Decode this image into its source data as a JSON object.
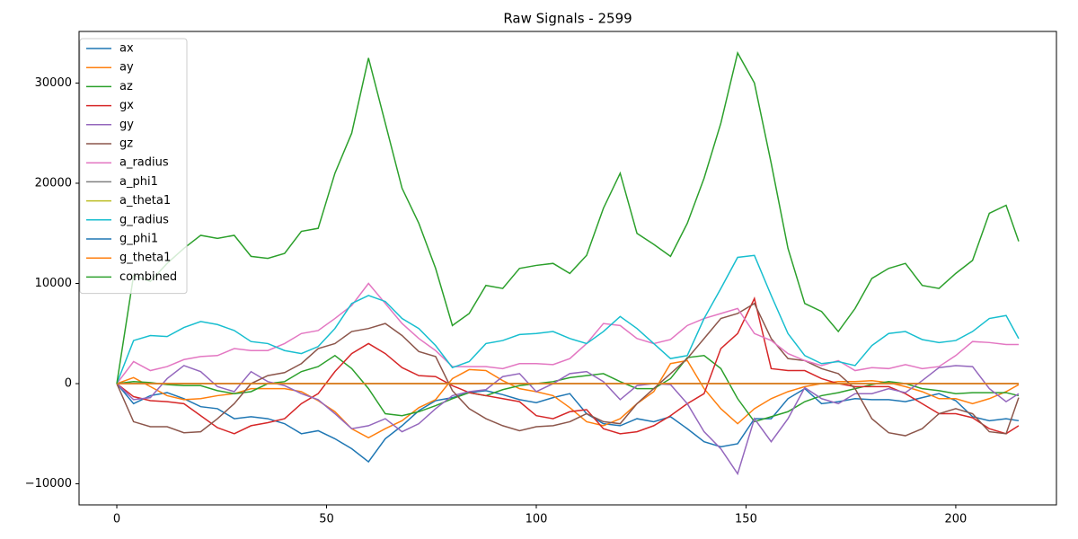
{
  "chart_data": {
    "type": "line",
    "title": "Raw Signals - 2599",
    "x": [
      0,
      4,
      8,
      12,
      16,
      20,
      24,
      28,
      32,
      36,
      40,
      44,
      48,
      52,
      56,
      60,
      64,
      68,
      72,
      76,
      80,
      84,
      88,
      92,
      96,
      100,
      104,
      108,
      112,
      116,
      120,
      124,
      128,
      132,
      136,
      140,
      144,
      148,
      152,
      156,
      160,
      164,
      168,
      172,
      176,
      180,
      184,
      188,
      192,
      196,
      200,
      204,
      208,
      212,
      215
    ],
    "xlim": [
      -9,
      224
    ],
    "xticks": [
      0,
      50,
      100,
      150,
      200
    ],
    "ylim": [
      -12100,
      35150
    ],
    "yticks": [
      {
        "value": -10000,
        "label": "−10000"
      },
      0,
      10000,
      20000,
      30000
    ],
    "grid": false,
    "legend": "upper left",
    "series": [
      {
        "name": "ax",
        "color": "#1f77b4",
        "values": [
          0,
          -2000,
          -1200,
          -900,
          -1500,
          -2300,
          -2500,
          -3500,
          -3300,
          -3500,
          -4000,
          -5000,
          -4700,
          -5500,
          -6500,
          -7800,
          -5500,
          -4200,
          -2700,
          -1700,
          -1400,
          -900,
          -700,
          -1100,
          -1600,
          -1900,
          -1400,
          -1000,
          -3000,
          -4000,
          -4200,
          -3500,
          -3800,
          -3300,
          -4500,
          -5800,
          -6300,
          -6000,
          -3500,
          -3500,
          -1500,
          -500,
          -2000,
          -1800,
          -1500,
          -1600,
          -1600,
          -1800,
          -1400,
          -1000,
          -1700,
          -3300,
          -3700,
          -3500,
          -3700
        ]
      },
      {
        "name": "ay",
        "color": "#ff7f0e",
        "values": [
          0,
          600,
          -300,
          -1200,
          -1600,
          -1500,
          -1200,
          -1000,
          -500,
          -500,
          -500,
          -800,
          -1700,
          -2800,
          -4500,
          -5400,
          -4500,
          -3700,
          -2400,
          -1600,
          500,
          1400,
          1300,
          300,
          -500,
          -800,
          -1200,
          -2400,
          -3800,
          -4200,
          -3500,
          -2000,
          -800,
          2000,
          2300,
          -500,
          -2500,
          -4000,
          -2500,
          -1500,
          -800,
          -300,
          0,
          200,
          200,
          300,
          100,
          -300,
          -800,
          -1500,
          -1500,
          -2000,
          -1500,
          -800,
          -100
        ]
      },
      {
        "name": "az",
        "color": "#2ca02c",
        "values": [
          0,
          200,
          100,
          -100,
          -200,
          -200,
          -700,
          -1000,
          -800,
          0,
          200,
          1200,
          1700,
          2800,
          1500,
          -500,
          -3000,
          -3200,
          -2800,
          -2200,
          -1500,
          -900,
          -1200,
          -600,
          -200,
          0,
          200,
          600,
          800,
          1000,
          200,
          -500,
          -500,
          500,
          2600,
          2800,
          1500,
          -1500,
          -3800,
          -3300,
          -2800,
          -1800,
          -1200,
          -900,
          -500,
          -100,
          200,
          0,
          -500,
          -700,
          -1000,
          -900,
          -900,
          -900,
          -1200
        ]
      },
      {
        "name": "gx",
        "color": "#d62728",
        "values": [
          0,
          -1300,
          -1700,
          -1800,
          -2000,
          -3200,
          -4400,
          -5000,
          -4200,
          -3900,
          -3500,
          -2000,
          -1000,
          1200,
          3000,
          4000,
          3000,
          1600,
          800,
          700,
          -200,
          -900,
          -1200,
          -1500,
          -1800,
          -3200,
          -3500,
          -2800,
          -2600,
          -4500,
          -5000,
          -4800,
          -4200,
          -3200,
          -2000,
          -1000,
          3500,
          5000,
          8500,
          1500,
          1300,
          1300,
          500,
          0,
          -300,
          -300,
          -300,
          -1000,
          -2000,
          -3000,
          -3000,
          -3400,
          -4500,
          -5000,
          -4200
        ]
      },
      {
        "name": "gy",
        "color": "#9467bd",
        "values": [
          0,
          -1600,
          -1400,
          500,
          1800,
          1200,
          -300,
          -800,
          1200,
          200,
          -200,
          -1000,
          -1600,
          -3000,
          -4500,
          -4200,
          -3500,
          -4800,
          -4000,
          -2500,
          -1200,
          -800,
          -600,
          700,
          1000,
          -800,
          0,
          1000,
          1200,
          200,
          -1600,
          -200,
          0,
          -100,
          -2000,
          -4800,
          -6500,
          -9000,
          -3500,
          -5800,
          -3500,
          -400,
          -1500,
          -2000,
          -1000,
          -1000,
          -500,
          -900,
          300,
          1600,
          1800,
          1700,
          -500,
          -1800,
          -1000
        ]
      },
      {
        "name": "gz",
        "color": "#8c564b",
        "values": [
          0,
          -3800,
          -4300,
          -4300,
          -4900,
          -4800,
          -3500,
          -2000,
          0,
          800,
          1100,
          2000,
          3500,
          4000,
          5200,
          5500,
          6000,
          4800,
          3200,
          2700,
          -700,
          -2500,
          -3500,
          -4200,
          -4700,
          -4300,
          -4200,
          -3800,
          -3000,
          -3800,
          -4000,
          -2000,
          -500,
          1000,
          2500,
          4500,
          6500,
          7000,
          8000,
          4500,
          2500,
          2300,
          1500,
          1000,
          -500,
          -3500,
          -4900,
          -5200,
          -4500,
          -3000,
          -2500,
          -3000,
          -4800,
          -5000,
          -1400
        ]
      },
      {
        "name": "a_radius",
        "color": "#e377c2",
        "values": [
          0,
          2200,
          1300,
          1700,
          2400,
          2700,
          2800,
          3500,
          3300,
          3300,
          4000,
          5000,
          5300,
          6500,
          7800,
          10000,
          8000,
          6000,
          4500,
          3300,
          1700,
          1700,
          1700,
          1500,
          2000,
          2000,
          1900,
          2500,
          4000,
          6000,
          5800,
          4500,
          4000,
          4400,
          5800,
          6500,
          7000,
          7500,
          5000,
          4300,
          3000,
          2300,
          1800,
          2300,
          1300,
          1600,
          1500,
          1900,
          1500,
          1700,
          2800,
          4200,
          4100,
          3900,
          3900
        ]
      },
      {
        "name": "a_phi1",
        "color": "#7f7f7f",
        "values": [
          0,
          0,
          0,
          0,
          0,
          0,
          0,
          0,
          0,
          0,
          0,
          0,
          0,
          0,
          0,
          0,
          0,
          0,
          0,
          0,
          0,
          0,
          0,
          0,
          0,
          0,
          0,
          0,
          0,
          0,
          0,
          0,
          0,
          0,
          0,
          0,
          0,
          0,
          0,
          0,
          0,
          0,
          0,
          0,
          0,
          0,
          0,
          0,
          0,
          0,
          0,
          0,
          0,
          0,
          0
        ]
      },
      {
        "name": "a_theta1",
        "color": "#bcbd22",
        "values": [
          0,
          0,
          0,
          0,
          0,
          0,
          0,
          0,
          0,
          0,
          0,
          0,
          0,
          0,
          0,
          0,
          0,
          0,
          0,
          0,
          0,
          0,
          0,
          0,
          0,
          0,
          0,
          0,
          0,
          0,
          0,
          0,
          0,
          0,
          0,
          0,
          0,
          0,
          0,
          0,
          0,
          0,
          0,
          0,
          0,
          0,
          0,
          0,
          0,
          0,
          0,
          0,
          0,
          0,
          0
        ]
      },
      {
        "name": "g_radius",
        "color": "#17becf",
        "values": [
          0,
          4300,
          4800,
          4700,
          5600,
          6200,
          5900,
          5300,
          4200,
          4000,
          3300,
          3000,
          3700,
          5500,
          8000,
          8800,
          8200,
          6500,
          5500,
          3800,
          1600,
          2200,
          4000,
          4300,
          4900,
          5000,
          5200,
          4500,
          4000,
          5200,
          6700,
          5500,
          4000,
          2500,
          2800,
          6500,
          9500,
          12600,
          12800,
          8800,
          5000,
          2800,
          2000,
          2200,
          1800,
          3800,
          5000,
          5200,
          4400,
          4100,
          4300,
          5200,
          6500,
          6800,
          4500
        ]
      },
      {
        "name": "g_phi1",
        "color": "#1f77b4",
        "values": [
          0,
          0,
          0,
          0,
          0,
          0,
          0,
          0,
          0,
          0,
          0,
          0,
          0,
          0,
          0,
          0,
          0,
          0,
          0,
          0,
          0,
          0,
          0,
          0,
          0,
          0,
          0,
          0,
          0,
          0,
          0,
          0,
          0,
          0,
          0,
          0,
          0,
          0,
          0,
          0,
          0,
          0,
          0,
          0,
          0,
          0,
          0,
          0,
          0,
          0,
          0,
          0,
          0,
          0,
          0
        ]
      },
      {
        "name": "g_theta1",
        "color": "#ff7f0e",
        "values": [
          0,
          0,
          0,
          0,
          0,
          0,
          0,
          0,
          0,
          0,
          0,
          0,
          0,
          0,
          0,
          0,
          0,
          0,
          0,
          0,
          0,
          0,
          0,
          0,
          0,
          0,
          0,
          0,
          0,
          0,
          0,
          0,
          0,
          0,
          0,
          0,
          0,
          0,
          0,
          0,
          0,
          0,
          0,
          0,
          0,
          0,
          0,
          0,
          0,
          0,
          0,
          0,
          0,
          0,
          0
        ]
      },
      {
        "name": "combined",
        "color": "#2ca02c",
        "values": [
          0,
          10800,
          10200,
          12000,
          13500,
          14800,
          14500,
          14800,
          12700,
          12500,
          13000,
          15200,
          15500,
          21000,
          25000,
          32500,
          26000,
          19500,
          16000,
          11500,
          5800,
          7000,
          9800,
          9500,
          11500,
          11800,
          12000,
          11000,
          12800,
          17500,
          21000,
          15000,
          13900,
          12700,
          16000,
          20500,
          26000,
          33000,
          30000,
          22000,
          13500,
          8000,
          7200,
          5200,
          7500,
          10500,
          11500,
          12000,
          9800,
          9500,
          11000,
          12300,
          17000,
          17800,
          14200
        ]
      }
    ]
  }
}
